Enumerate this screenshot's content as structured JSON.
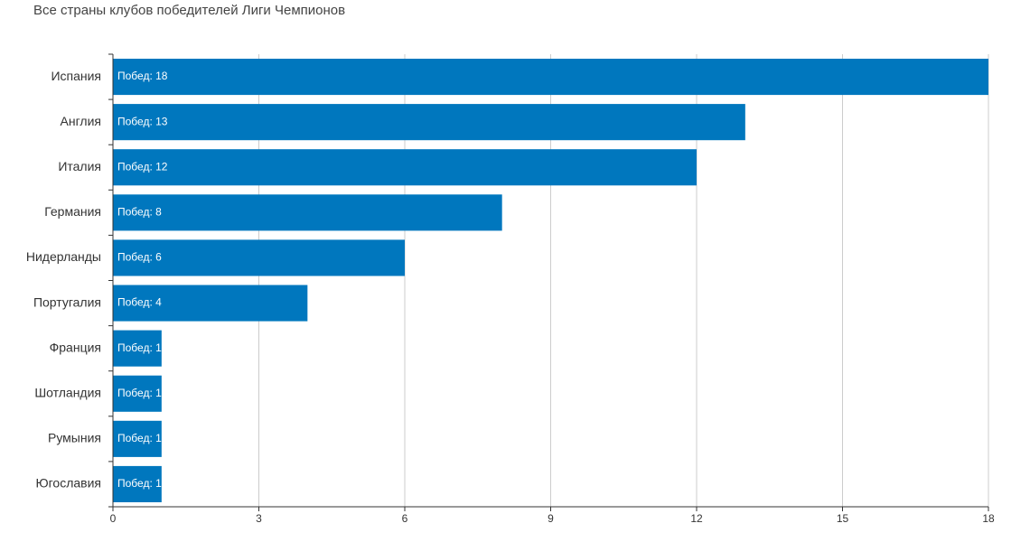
{
  "chart_data": {
    "type": "bar",
    "orientation": "horizontal",
    "title": "Все страны клубов победителей Лиги Чемпионов",
    "categories": [
      "Испания",
      "Англия",
      "Италия",
      "Германия",
      "Нидерланды",
      "Португалия",
      "Франция",
      "Шотландия",
      "Румыния",
      "Югославия"
    ],
    "values": [
      18,
      13,
      12,
      8,
      6,
      4,
      1,
      1,
      1,
      1
    ],
    "value_labels": [
      "Побед: 18",
      "Побед: 13",
      "Побед: 12",
      "Побед: 8",
      "Побед: 6",
      "Побед: 4",
      "Побед: 1",
      "Побед: 1",
      "Побед: 1",
      "Побед: 1"
    ],
    "color": "#0077be",
    "xlim": [
      0,
      18
    ],
    "xticks": [
      0,
      3,
      6,
      9,
      12,
      15,
      18
    ],
    "grid": true
  }
}
